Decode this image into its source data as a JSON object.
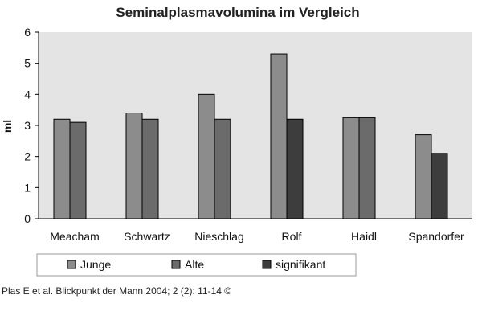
{
  "chart_data": {
    "type": "bar",
    "title": "Seminalplasmavolumina im Vergleich",
    "xlabel": "",
    "ylabel": "ml",
    "ylim": [
      0,
      6
    ],
    "yticks": [
      "0",
      "1",
      "2",
      "3",
      "4",
      "5",
      "6"
    ],
    "categories": [
      "Meacham",
      "Schwartz",
      "Nieschlag",
      "Rolf",
      "Haidl",
      "Spandorfer"
    ],
    "series": [
      {
        "name": "Junge",
        "values": [
          3.2,
          3.4,
          4.0,
          5.3,
          3.25,
          2.7
        ]
      },
      {
        "name": "Alte",
        "values": [
          3.1,
          3.2,
          3.2,
          3.2,
          3.25,
          2.1
        ]
      }
    ],
    "significant": [
      false,
      false,
      false,
      true,
      false,
      true
    ],
    "legend": {
      "position": "bottom",
      "entries": [
        {
          "label": "Junge",
          "color": "#8c8c8c"
        },
        {
          "label": "Alte",
          "color": "#6b6b6b"
        },
        {
          "label": "signifikant",
          "color": "#3d3d3d"
        }
      ]
    },
    "colors": {
      "junge": "#8c8c8c",
      "alte": "#6b6b6b",
      "signifikant": "#3d3d3d",
      "plot_bg": "#e4e4e4"
    },
    "grid": false
  },
  "source": "Plas E et al. Blickpunkt der Mann 2004; 2 (2): 11-14 ©"
}
